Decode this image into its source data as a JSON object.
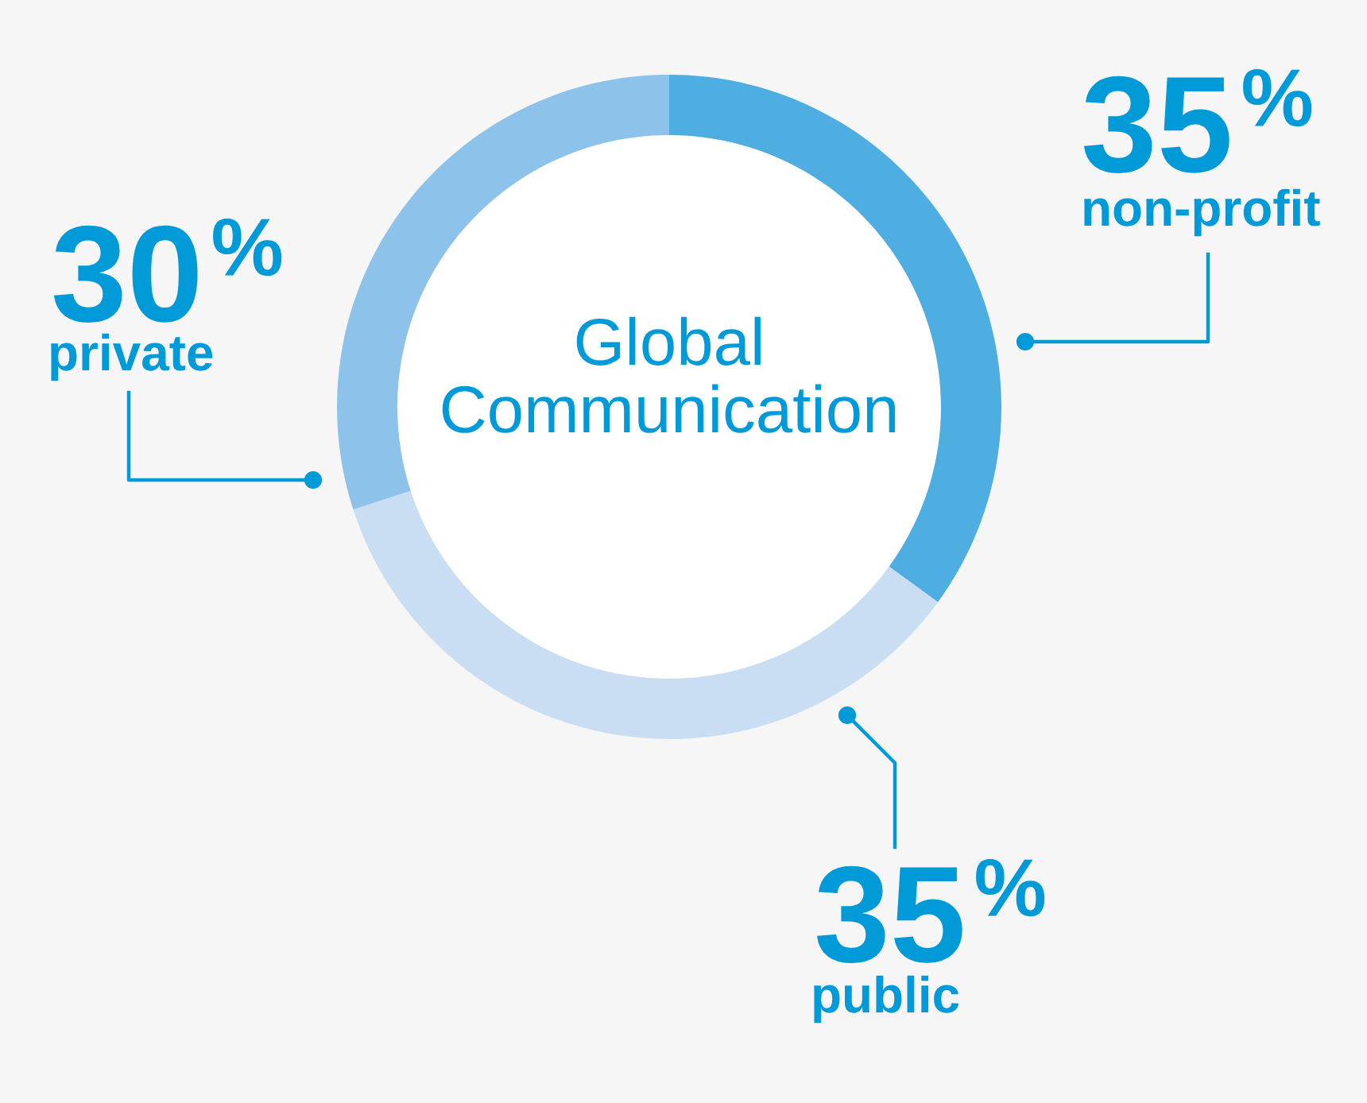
{
  "chart_data": {
    "type": "donut",
    "title": "Global\nCommunication",
    "categories": [
      "non-profit",
      "public",
      "private"
    ],
    "values": [
      35,
      35,
      30
    ],
    "colors": [
      "#4eade1",
      "#c9ddf3",
      "#8dc3ea"
    ],
    "value_labels": [
      "35%",
      "35%",
      "30%"
    ]
  }
}
